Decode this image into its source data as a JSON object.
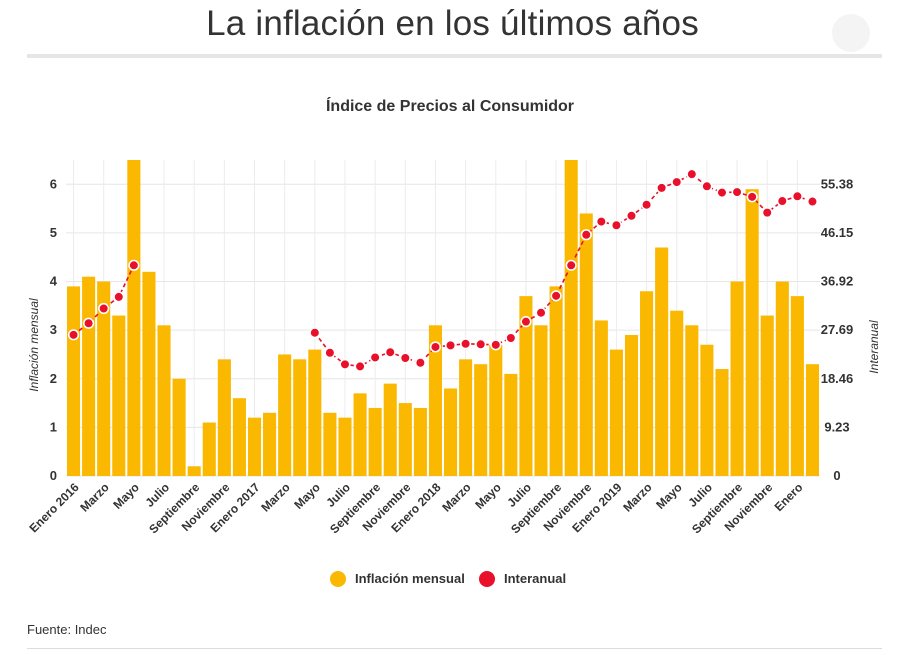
{
  "page": {
    "title": "La inflación en los últimos años",
    "source": "Fuente: Indec"
  },
  "chart_data": {
    "type": "bar",
    "title": "Índice de Precios al Consumidor",
    "ylabel_left": "Inflación mensual",
    "ylabel_right": "Interanual",
    "ylim_left": [
      0,
      6.5
    ],
    "ylim_right": [
      0,
      59.99
    ],
    "yticks_left": [
      "0",
      "1",
      "2",
      "3",
      "4",
      "5",
      "6"
    ],
    "yticks_right": [
      "0",
      "9.23",
      "18.46",
      "27.69",
      "36.92",
      "46.15",
      "55.38"
    ],
    "x_tick_labels": [
      "Enero 2016",
      "Marzo",
      "Mayo",
      "Julio",
      "Septiembre",
      "Noviembre",
      "Enero 2017",
      "Marzo",
      "Mayo",
      "Julio",
      "Septiembre",
      "Noviembre",
      "Enero 2018",
      "Marzo",
      "Mayo",
      "Julio",
      "Septiembre",
      "Noviembre",
      "Enero 2019",
      "Marzo",
      "Mayo",
      "Julio",
      "Septiembre",
      "Noviembre",
      "Enero"
    ],
    "grid": true,
    "legend_position": "bottom",
    "colors": {
      "bars": "#fab800",
      "line": "#e8102a"
    },
    "series": [
      {
        "name": "Inflación mensual",
        "type": "bar",
        "axis": "left",
        "values": [
          3.9,
          4.1,
          4.0,
          3.3,
          6.5,
          4.2,
          3.1,
          2.0,
          0.2,
          1.1,
          2.4,
          1.6,
          1.2,
          1.3,
          2.5,
          2.4,
          2.6,
          1.3,
          1.2,
          1.7,
          1.4,
          1.9,
          1.5,
          1.4,
          3.1,
          1.8,
          2.4,
          2.3,
          2.7,
          2.1,
          3.7,
          3.1,
          3.9,
          6.5,
          5.4,
          3.2,
          2.6,
          2.9,
          3.8,
          4.7,
          3.4,
          3.1,
          2.7,
          2.2,
          4.0,
          5.9,
          3.3,
          4.0,
          3.7,
          2.3
        ]
      },
      {
        "name": "Interanual",
        "type": "line",
        "axis": "right",
        "values": [
          26.8,
          29.0,
          31.8,
          34.0,
          40.0,
          null,
          null,
          null,
          null,
          null,
          null,
          null,
          null,
          null,
          null,
          null,
          27.2,
          23.4,
          21.2,
          20.8,
          22.5,
          23.5,
          22.4,
          21.5,
          24.5,
          24.8,
          25.1,
          25.0,
          24.9,
          26.2,
          29.3,
          31.0,
          34.2,
          40.0,
          45.8,
          48.3,
          47.6,
          49.4,
          51.5,
          54.7,
          55.8,
          57.3,
          55.0,
          53.8,
          53.9,
          53.0,
          50.0,
          52.2,
          53.1,
          52.1
        ]
      }
    ]
  }
}
